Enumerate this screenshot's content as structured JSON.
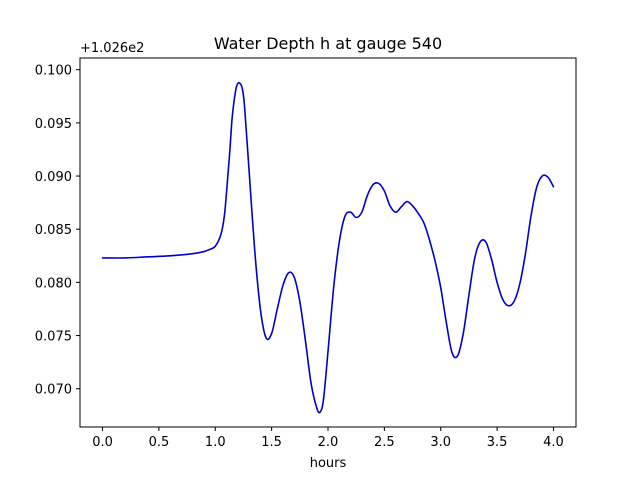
{
  "chart_data": {
    "type": "line",
    "title": "Water Depth h at gauge 540",
    "xlabel": "hours",
    "ylabel": "",
    "y_offset_label": "+1.026e2",
    "xlim": [
      -0.2,
      4.2
    ],
    "ylim": [
      0.0664,
      0.1011
    ],
    "xticks": [
      0.0,
      0.5,
      1.0,
      1.5,
      2.0,
      2.5,
      3.0,
      3.5,
      4.0
    ],
    "xtick_labels": [
      "0.0",
      "0.5",
      "1.0",
      "1.5",
      "2.0",
      "2.5",
      "3.0",
      "3.5",
      "4.0"
    ],
    "yticks": [
      0.07,
      0.075,
      0.08,
      0.085,
      0.09,
      0.095,
      0.1
    ],
    "ytick_labels": [
      "0.070",
      "0.075",
      "0.080",
      "0.085",
      "0.090",
      "0.095",
      "0.100"
    ],
    "grid": false,
    "series": [
      {
        "color": "#0000cc",
        "x": [
          0.0,
          0.2,
          0.4,
          0.6,
          0.8,
          0.9,
          0.95,
          1.0,
          1.05,
          1.08,
          1.1,
          1.13,
          1.15,
          1.18,
          1.2,
          1.22,
          1.24,
          1.26,
          1.3,
          1.35,
          1.4,
          1.45,
          1.5,
          1.55,
          1.6,
          1.65,
          1.7,
          1.75,
          1.8,
          1.85,
          1.9,
          1.93,
          1.96,
          2.0,
          2.05,
          2.1,
          2.15,
          2.2,
          2.25,
          2.3,
          2.35,
          2.4,
          2.45,
          2.5,
          2.55,
          2.6,
          2.65,
          2.7,
          2.75,
          2.8,
          2.85,
          2.9,
          2.95,
          3.0,
          3.05,
          3.1,
          3.15,
          3.2,
          3.25,
          3.3,
          3.35,
          3.4,
          3.45,
          3.5,
          3.55,
          3.6,
          3.65,
          3.7,
          3.75,
          3.8,
          3.85,
          3.9,
          3.95,
          4.0
        ],
        "y": [
          0.0823,
          0.0823,
          0.0824,
          0.0825,
          0.0827,
          0.0829,
          0.0831,
          0.0834,
          0.0845,
          0.0862,
          0.0885,
          0.0925,
          0.0955,
          0.098,
          0.0987,
          0.0987,
          0.0982,
          0.0965,
          0.0905,
          0.083,
          0.0775,
          0.0748,
          0.0752,
          0.0775,
          0.0797,
          0.0809,
          0.0805,
          0.0782,
          0.0745,
          0.0705,
          0.0682,
          0.0678,
          0.069,
          0.0735,
          0.0795,
          0.0838,
          0.0862,
          0.0866,
          0.0861,
          0.0866,
          0.0882,
          0.0892,
          0.0893,
          0.0886,
          0.0872,
          0.0866,
          0.0871,
          0.0876,
          0.0872,
          0.0865,
          0.0856,
          0.084,
          0.082,
          0.0795,
          0.0762,
          0.0734,
          0.0731,
          0.0752,
          0.0788,
          0.0822,
          0.0838,
          0.0838,
          0.0822,
          0.08,
          0.0784,
          0.0778,
          0.0782,
          0.0798,
          0.0826,
          0.0862,
          0.0889,
          0.09,
          0.0899,
          0.089
        ]
      }
    ]
  }
}
